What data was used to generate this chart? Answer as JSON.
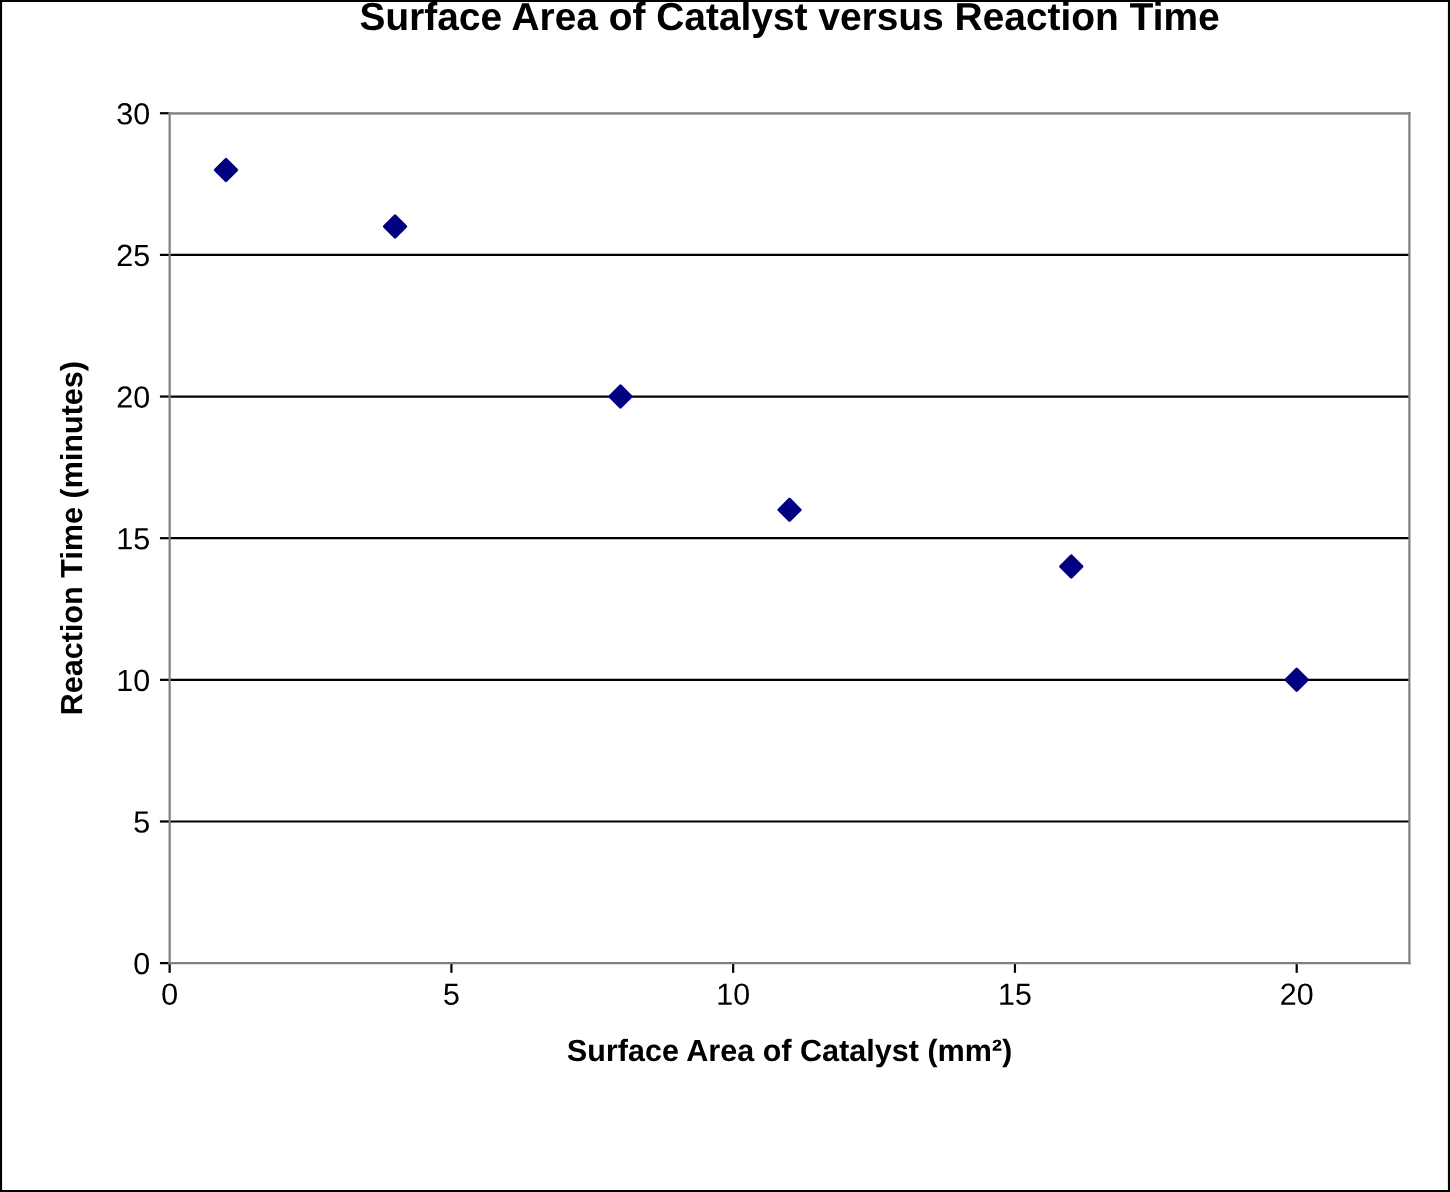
{
  "chart_data": {
    "type": "scatter",
    "title": "Surface Area of Catalyst versus Reaction Time",
    "xlabel": "Surface Area of Catalyst (mm²)",
    "ylabel": "Reaction Time (minutes)",
    "x": [
      1,
      4,
      8,
      11,
      16,
      20
    ],
    "series": [
      {
        "color": "#000080",
        "values": [
          28,
          26,
          20,
          16,
          14,
          10
        ]
      }
    ],
    "xlim": [
      0,
      22
    ],
    "xticks": [
      0,
      5,
      10,
      15,
      20
    ],
    "ylim": [
      0,
      30
    ],
    "yticks": [
      0,
      5,
      10,
      15,
      20,
      25,
      30
    ],
    "grid": "y",
    "marker": "diamond",
    "legend": false
  }
}
